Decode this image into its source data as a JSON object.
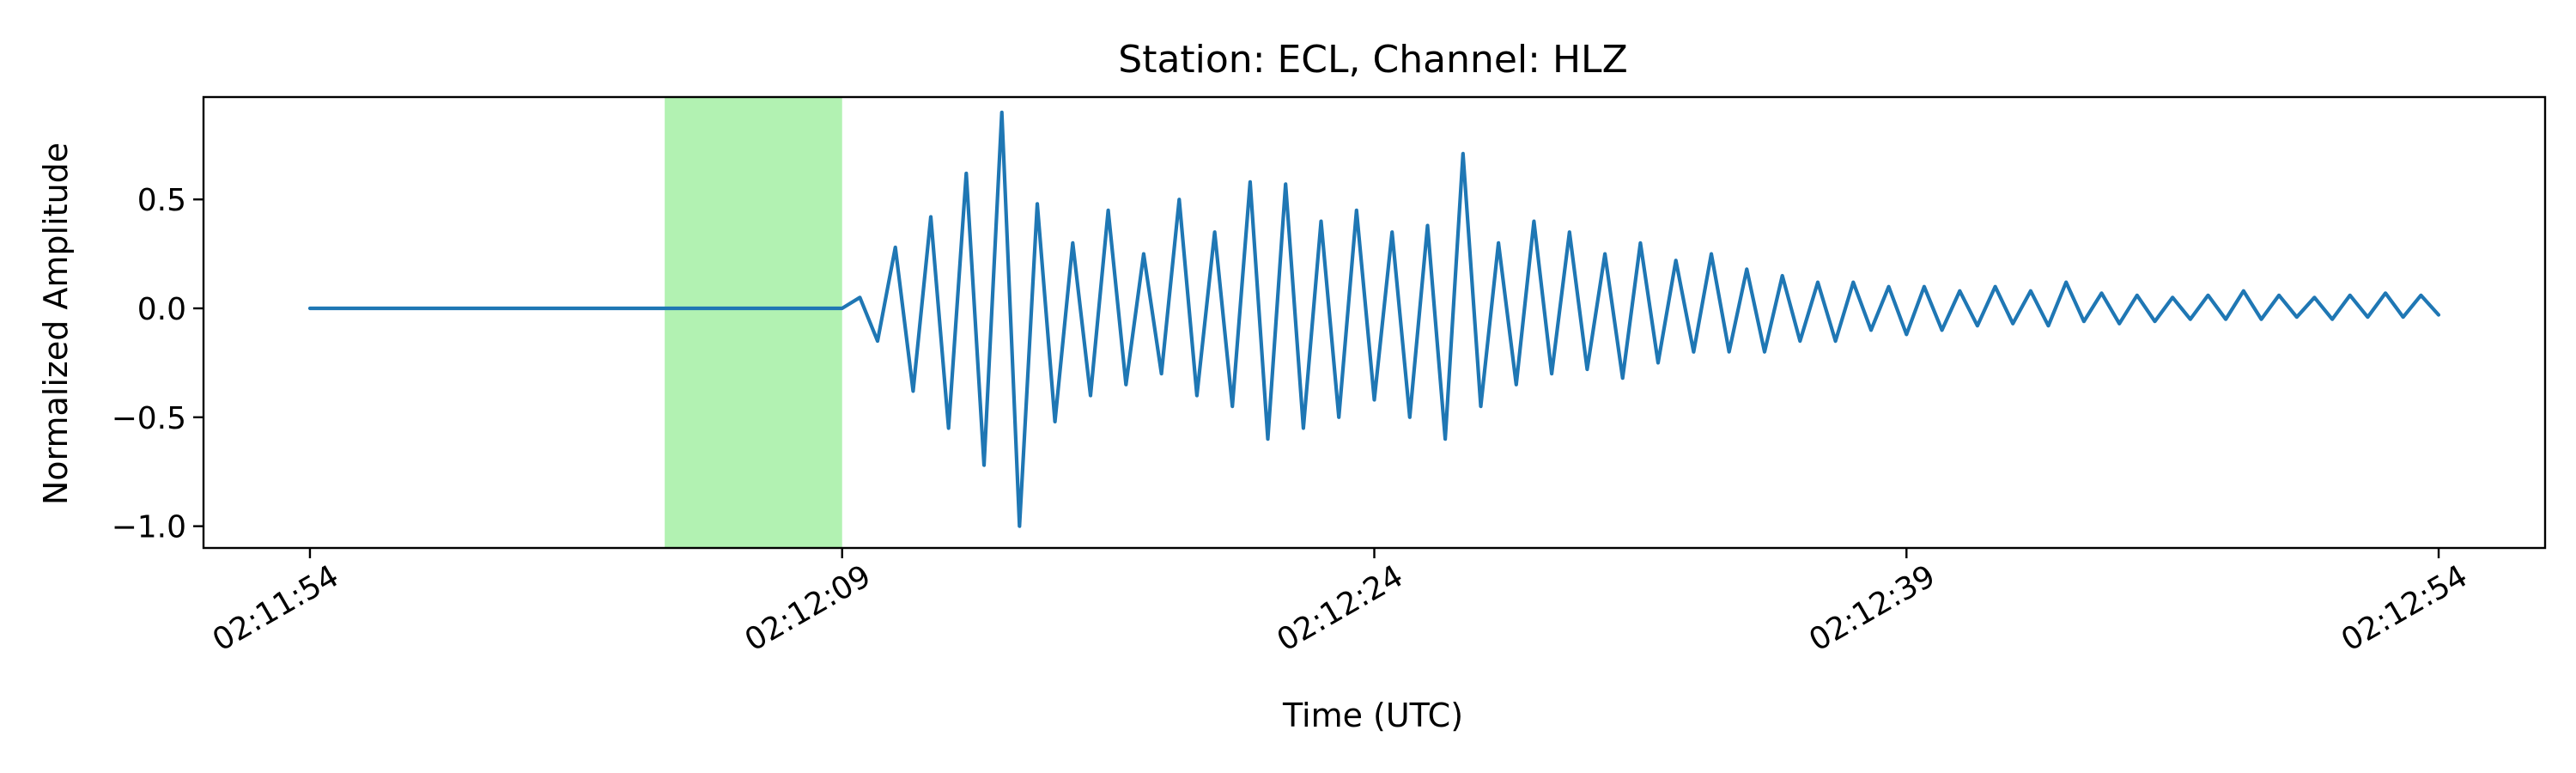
{
  "chart_data": {
    "type": "line",
    "title": "Station: ECL, Channel: HLZ",
    "xlabel": "Time (UTC)",
    "ylabel": "Normalized Amplitude",
    "x_start_time": "02:11:54",
    "x_end_time": "02:12:54",
    "xlim": [
      "02:11:51",
      "02:12:57"
    ],
    "ylim": [
      -1.1,
      0.97
    ],
    "xticks": [
      "02:11:54",
      "02:12:09",
      "02:12:24",
      "02:12:39",
      "02:12:54"
    ],
    "yticks": [
      0.5,
      0.0,
      -0.5,
      -1.0
    ],
    "ytick_labels": [
      "0.5",
      "0.0",
      "−0.5",
      "−1.0"
    ],
    "grid": false,
    "highlight_span": {
      "start": "02:12:04",
      "end": "02:12:09",
      "color": "#b2f2b2"
    },
    "series": [
      {
        "color": "#1f77b4",
        "x": [
          "02:11:54",
          "02:11:56",
          "02:11:58",
          "02:12:00",
          "02:12:02",
          "02:12:04",
          "02:12:06",
          "02:12:08",
          "02:12:09",
          "02:12:09.5",
          "02:12:10",
          "02:12:10.5",
          "02:12:11",
          "02:12:11.5",
          "02:12:12",
          "02:12:12.5",
          "02:12:13",
          "02:12:13.5",
          "02:12:14",
          "02:12:14.5",
          "02:12:15",
          "02:12:15.5",
          "02:12:16",
          "02:12:16.5",
          "02:12:17",
          "02:12:17.5",
          "02:12:18",
          "02:12:18.5",
          "02:12:19",
          "02:12:19.5",
          "02:12:20",
          "02:12:20.5",
          "02:12:21",
          "02:12:21.5",
          "02:12:22",
          "02:12:22.5",
          "02:12:23",
          "02:12:23.5",
          "02:12:24",
          "02:12:24.5",
          "02:12:25",
          "02:12:25.5",
          "02:12:26",
          "02:12:26.5",
          "02:12:27",
          "02:12:27.5",
          "02:12:28",
          "02:12:28.5",
          "02:12:29",
          "02:12:29.5",
          "02:12:30",
          "02:12:30.5",
          "02:12:31",
          "02:12:31.5",
          "02:12:32",
          "02:12:32.5",
          "02:12:33",
          "02:12:33.5",
          "02:12:34",
          "02:12:34.5",
          "02:12:35",
          "02:12:35.5",
          "02:12:36",
          "02:12:36.5",
          "02:12:37",
          "02:12:37.5",
          "02:12:38",
          "02:12:38.5",
          "02:12:39",
          "02:12:39.5",
          "02:12:40",
          "02:12:40.5",
          "02:12:41",
          "02:12:41.5",
          "02:12:42",
          "02:12:42.5",
          "02:12:43",
          "02:12:43.5",
          "02:12:44",
          "02:12:44.5",
          "02:12:45",
          "02:12:45.5",
          "02:12:46",
          "02:12:46.5",
          "02:12:47",
          "02:12:47.5",
          "02:12:48",
          "02:12:48.5",
          "02:12:49",
          "02:12:49.5",
          "02:12:50",
          "02:12:50.5",
          "02:12:51",
          "02:12:51.5",
          "02:12:52",
          "02:12:52.5",
          "02:12:53",
          "02:12:53.5",
          "02:12:54"
        ],
        "values": [
          0.0,
          0.0,
          0.0,
          0.0,
          0.0,
          0.0,
          0.0,
          0.0,
          0.0,
          0.05,
          -0.15,
          0.28,
          -0.38,
          0.42,
          -0.55,
          0.62,
          -0.72,
          0.9,
          -1.0,
          0.48,
          -0.52,
          0.3,
          -0.4,
          0.45,
          -0.35,
          0.25,
          -0.3,
          0.5,
          -0.4,
          0.35,
          -0.45,
          0.58,
          -0.6,
          0.57,
          -0.55,
          0.4,
          -0.5,
          0.45,
          -0.42,
          0.35,
          -0.5,
          0.38,
          -0.6,
          0.71,
          -0.45,
          0.3,
          -0.35,
          0.4,
          -0.3,
          0.35,
          -0.28,
          0.25,
          -0.32,
          0.3,
          -0.25,
          0.22,
          -0.2,
          0.25,
          -0.2,
          0.18,
          -0.2,
          0.15,
          -0.15,
          0.12,
          -0.15,
          0.12,
          -0.1,
          0.1,
          -0.12,
          0.1,
          -0.1,
          0.08,
          -0.08,
          0.1,
          -0.07,
          0.08,
          -0.08,
          0.12,
          -0.06,
          0.07,
          -0.07,
          0.06,
          -0.06,
          0.05,
          -0.05,
          0.06,
          -0.05,
          0.08,
          -0.05,
          0.06,
          -0.04,
          0.05,
          -0.05,
          0.06,
          -0.04,
          0.07,
          -0.04,
          0.06,
          -0.03
        ]
      }
    ]
  }
}
